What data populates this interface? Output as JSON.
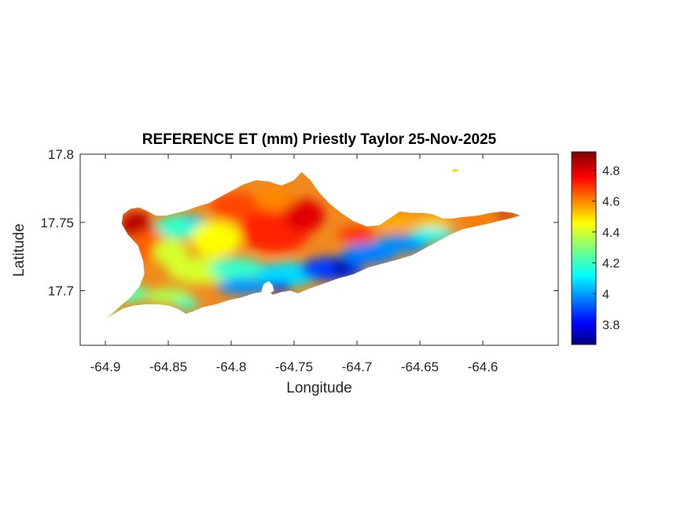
{
  "chart_data": {
    "type": "heatmap",
    "title": "REFERENCE ET (mm) Priestly Taylor 25-Nov-2025",
    "xlabel": "Longitude",
    "ylabel": "Latitude",
    "xlim": [
      -64.92,
      -64.54
    ],
    "ylim": [
      17.66,
      17.8
    ],
    "xticks": [
      -64.9,
      -64.85,
      -64.8,
      -64.75,
      -64.7,
      -64.65,
      -64.6
    ],
    "xtick_labels": [
      "-64.9",
      "-64.85",
      "-64.8",
      "-64.75",
      "-64.7",
      "-64.65",
      "-64.6"
    ],
    "yticks": [
      17.7,
      17.75,
      17.8
    ],
    "ytick_labels": [
      "17.7",
      "17.75",
      "17.8"
    ],
    "colorbar": {
      "colormap": "jet",
      "range": [
        3.67,
        4.92
      ],
      "ticks": [
        3.8,
        4.0,
        4.2,
        4.4,
        4.6,
        4.8
      ],
      "tick_labels": [
        "3.8",
        "4",
        "4.2",
        "4.4",
        "4.6",
        "4.8"
      ]
    },
    "grid": false,
    "island_outline": [
      [
        -64.9,
        17.68
      ],
      [
        -64.895,
        17.683
      ],
      [
        -64.888,
        17.689
      ],
      [
        -64.88,
        17.695
      ],
      [
        -64.873,
        17.703
      ],
      [
        -64.869,
        17.712
      ],
      [
        -64.87,
        17.722
      ],
      [
        -64.874,
        17.733
      ],
      [
        -64.882,
        17.741
      ],
      [
        -64.887,
        17.749
      ],
      [
        -64.886,
        17.756
      ],
      [
        -64.88,
        17.76
      ],
      [
        -64.873,
        17.761
      ],
      [
        -64.866,
        17.758
      ],
      [
        -64.86,
        17.755
      ],
      [
        -64.852,
        17.755
      ],
      [
        -64.843,
        17.757
      ],
      [
        -64.835,
        17.759
      ],
      [
        -64.826,
        17.762
      ],
      [
        -64.818,
        17.764
      ],
      [
        -64.81,
        17.768
      ],
      [
        -64.8,
        17.773
      ],
      [
        -64.79,
        17.778
      ],
      [
        -64.78,
        17.781
      ],
      [
        -64.77,
        17.78
      ],
      [
        -64.76,
        17.777
      ],
      [
        -64.75,
        17.781
      ],
      [
        -64.744,
        17.787
      ],
      [
        -64.737,
        17.781
      ],
      [
        -64.73,
        17.772
      ],
      [
        -64.722,
        17.764
      ],
      [
        -64.714,
        17.758
      ],
      [
        -64.703,
        17.751
      ],
      [
        -64.692,
        17.747
      ],
      [
        -64.682,
        17.748
      ],
      [
        -64.674,
        17.753
      ],
      [
        -64.666,
        17.758
      ],
      [
        -64.657,
        17.757
      ],
      [
        -64.648,
        17.757
      ],
      [
        -64.64,
        17.756
      ],
      [
        -64.632,
        17.753
      ],
      [
        -64.624,
        17.753
      ],
      [
        -64.615,
        17.754
      ],
      [
        -64.604,
        17.755
      ],
      [
        -64.594,
        17.757
      ],
      [
        -64.585,
        17.758
      ],
      [
        -64.576,
        17.757
      ],
      [
        -64.57,
        17.755
      ],
      [
        -64.578,
        17.753
      ],
      [
        -64.587,
        17.751
      ],
      [
        -64.596,
        17.749
      ],
      [
        -64.606,
        17.747
      ],
      [
        -64.616,
        17.745
      ],
      [
        -64.626,
        17.741
      ],
      [
        -64.636,
        17.736
      ],
      [
        -64.646,
        17.731
      ],
      [
        -64.656,
        17.726
      ],
      [
        -64.667,
        17.723
      ],
      [
        -64.679,
        17.72
      ],
      [
        -64.691,
        17.717
      ],
      [
        -64.703,
        17.712
      ],
      [
        -64.715,
        17.709
      ],
      [
        -64.727,
        17.705
      ],
      [
        -64.739,
        17.701
      ],
      [
        -64.747,
        17.698
      ],
      [
        -64.753,
        17.7
      ],
      [
        -64.76,
        17.699
      ],
      [
        -64.767,
        17.697
      ],
      [
        -64.772,
        17.701
      ],
      [
        -64.776,
        17.699
      ],
      [
        -64.782,
        17.698
      ],
      [
        -64.792,
        17.695
      ],
      [
        -64.802,
        17.693
      ],
      [
        -64.812,
        17.69
      ],
      [
        -64.822,
        17.688
      ],
      [
        -64.83,
        17.685
      ],
      [
        -64.836,
        17.683
      ],
      [
        -64.841,
        17.686
      ],
      [
        -64.849,
        17.689
      ],
      [
        -64.858,
        17.69
      ],
      [
        -64.868,
        17.69
      ],
      [
        -64.878,
        17.689
      ],
      [
        -64.886,
        17.687
      ],
      [
        -64.893,
        17.683
      ],
      [
        -64.9,
        17.68
      ]
    ],
    "lagoon_outline": [
      [
        -64.77,
        17.707
      ],
      [
        -64.774,
        17.705
      ],
      [
        -64.776,
        17.7
      ],
      [
        -64.771,
        17.697
      ],
      [
        -64.766,
        17.7
      ],
      [
        -64.767,
        17.704
      ],
      [
        -64.77,
        17.707
      ]
    ],
    "islet": {
      "lon": -64.622,
      "lat": 17.788,
      "value": 4.5
    },
    "zones": [
      {
        "lon": -64.875,
        "lat": 17.748,
        "rlon": 0.013,
        "rlat": 0.01,
        "value": 4.85
      },
      {
        "lon": -64.862,
        "lat": 17.733,
        "rlon": 0.018,
        "rlat": 0.012,
        "value": 4.65
      },
      {
        "lon": -64.838,
        "lat": 17.747,
        "rlon": 0.022,
        "rlat": 0.009,
        "value": 4.2
      },
      {
        "lon": -64.83,
        "lat": 17.751,
        "rlon": 0.006,
        "rlat": 0.003,
        "value": 4.05
      },
      {
        "lon": -64.848,
        "lat": 17.728,
        "rlon": 0.014,
        "rlat": 0.01,
        "value": 4.4
      },
      {
        "lon": -64.812,
        "lat": 17.738,
        "rlon": 0.02,
        "rlat": 0.013,
        "value": 4.45
      },
      {
        "lon": -64.795,
        "lat": 17.762,
        "rlon": 0.022,
        "rlat": 0.01,
        "value": 4.68
      },
      {
        "lon": -64.765,
        "lat": 17.744,
        "rlon": 0.028,
        "rlat": 0.016,
        "value": 4.72
      },
      {
        "lon": -64.765,
        "lat": 17.767,
        "rlon": 0.016,
        "rlat": 0.009,
        "value": 4.6
      },
      {
        "lon": -64.742,
        "lat": 17.755,
        "rlon": 0.016,
        "rlat": 0.012,
        "value": 4.8
      },
      {
        "lon": -64.823,
        "lat": 17.715,
        "rlon": 0.028,
        "rlat": 0.01,
        "value": 4.4
      },
      {
        "lon": -64.795,
        "lat": 17.716,
        "rlon": 0.022,
        "rlat": 0.008,
        "value": 4.2
      },
      {
        "lon": -64.79,
        "lat": 17.703,
        "rlon": 0.022,
        "rlat": 0.006,
        "value": 4.0
      },
      {
        "lon": -64.755,
        "lat": 17.712,
        "rlon": 0.025,
        "rlat": 0.009,
        "value": 4.1
      },
      {
        "lon": -64.762,
        "lat": 17.703,
        "rlon": 0.01,
        "rlat": 0.004,
        "value": 3.8
      },
      {
        "lon": -64.72,
        "lat": 17.716,
        "rlon": 0.025,
        "rlat": 0.009,
        "value": 3.9
      },
      {
        "lon": -64.712,
        "lat": 17.717,
        "rlon": 0.008,
        "rlat": 0.006,
        "value": 3.72
      },
      {
        "lon": -64.69,
        "lat": 17.727,
        "rlon": 0.022,
        "rlat": 0.008,
        "value": 3.98
      },
      {
        "lon": -64.665,
        "lat": 17.734,
        "rlon": 0.022,
        "rlat": 0.007,
        "value": 4.0
      },
      {
        "lon": -64.64,
        "lat": 17.741,
        "rlon": 0.018,
        "rlat": 0.005,
        "value": 4.15
      },
      {
        "lon": -64.88,
        "lat": 17.698,
        "rlon": 0.014,
        "rlat": 0.007,
        "value": 4.25
      },
      {
        "lon": -64.895,
        "lat": 17.684,
        "rlon": 0.006,
        "rlat": 0.004,
        "value": 4.3
      },
      {
        "lon": -64.85,
        "lat": 17.696,
        "rlon": 0.018,
        "rlat": 0.006,
        "value": 4.35
      },
      {
        "lon": -64.835,
        "lat": 17.69,
        "rlon": 0.01,
        "rlat": 0.004,
        "value": 4.2
      },
      {
        "lon": -64.7,
        "lat": 17.741,
        "rlon": 0.015,
        "rlat": 0.006,
        "value": 4.7
      },
      {
        "lon": -64.67,
        "lat": 17.75,
        "rlon": 0.018,
        "rlat": 0.006,
        "value": 4.55
      },
      {
        "lon": -64.64,
        "lat": 17.75,
        "rlon": 0.015,
        "rlat": 0.004,
        "value": 4.5
      },
      {
        "lon": -64.605,
        "lat": 17.752,
        "rlon": 0.012,
        "rlat": 0.004,
        "value": 4.62
      },
      {
        "lon": -64.582,
        "lat": 17.755,
        "rlon": 0.01,
        "rlat": 0.002,
        "value": 4.85
      }
    ]
  }
}
